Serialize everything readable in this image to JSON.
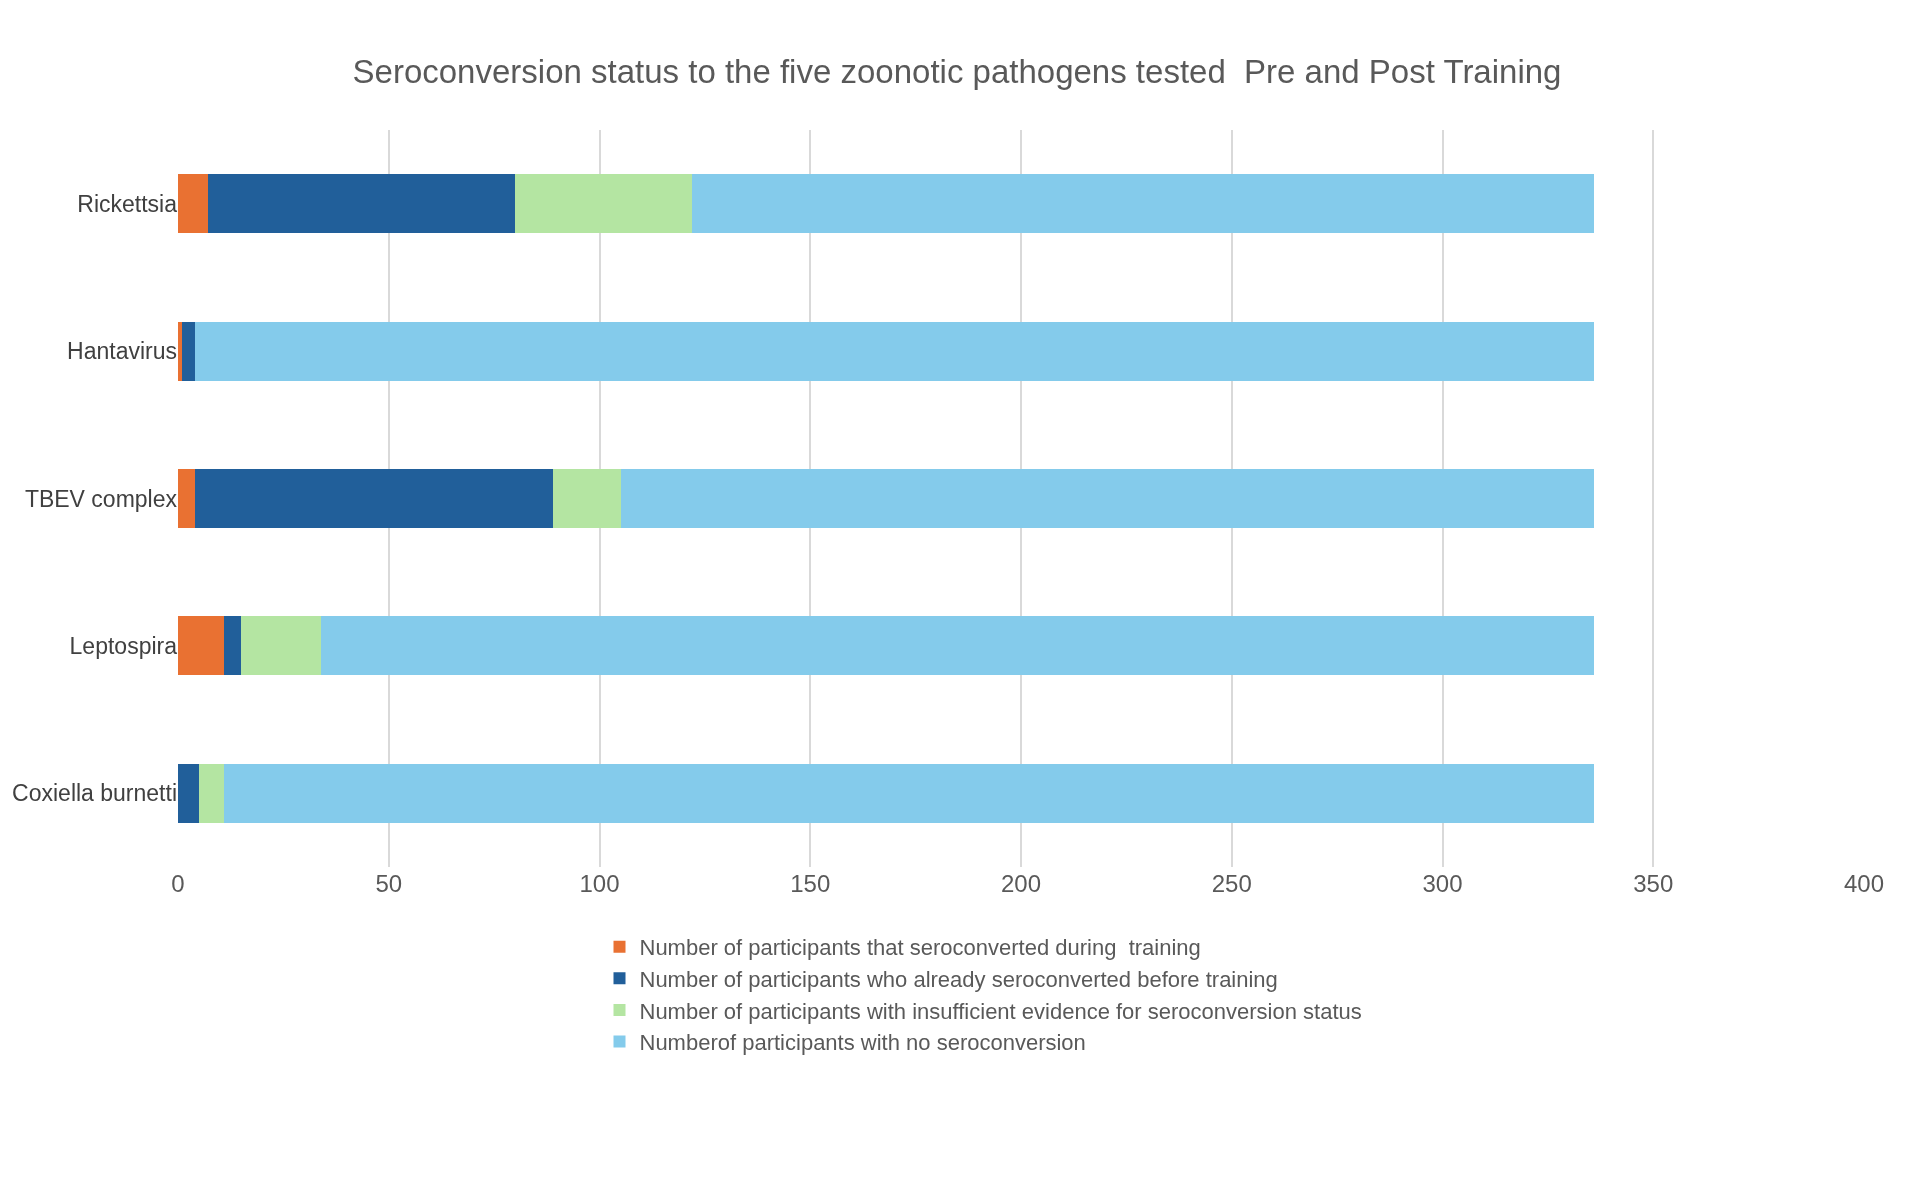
{
  "chart_data": {
    "type": "bar",
    "orientation": "horizontal",
    "stacked": true,
    "title": "Seroconversion status to the five zoonotic pathogens tested  Pre and Post Training",
    "categories": [
      "Rickettsia",
      "Hantavirus",
      "TBEV complex",
      "Leptospira",
      "Coxiella burnetti"
    ],
    "series": [
      {
        "name": "Number of participants that seroconverted during  training",
        "color": "#e97132",
        "values": [
          7,
          1,
          4,
          11,
          0
        ]
      },
      {
        "name": "Number of participants who already seroconverted before training",
        "color": "#215f9a",
        "values": [
          73,
          3,
          85,
          4,
          5
        ]
      },
      {
        "name": "Number of participants with insufficient evidence for seroconversion status",
        "color": "#b4e5a2",
        "values": [
          42,
          0,
          16,
          19,
          6
        ]
      },
      {
        "name": "Numberof participants with no seroconversion",
        "color": "#84cbeb",
        "values": [
          214,
          332,
          231,
          302,
          325
        ]
      }
    ],
    "xlim": [
      0,
      400
    ],
    "xticks": [
      0,
      50,
      100,
      150,
      200,
      250,
      300,
      350,
      400
    ],
    "grid": "x",
    "legend": "bottom"
  }
}
